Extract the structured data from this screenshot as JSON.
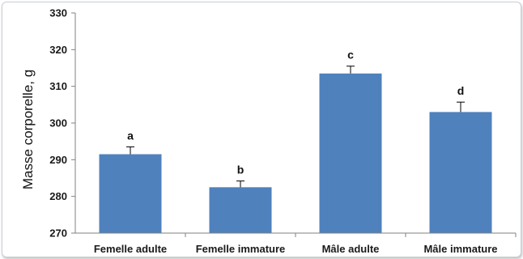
{
  "chart_data": {
    "type": "bar",
    "title": "",
    "xlabel": "",
    "ylabel": "Masse corporelle, g",
    "ylim": [
      270,
      330
    ],
    "yticks": [
      270,
      280,
      290,
      300,
      310,
      320,
      330
    ],
    "grid": false,
    "categories": [
      "Femelle adulte",
      "Femelle immature",
      "Mâle adulte",
      "Mâle immature"
    ],
    "values": [
      291.5,
      282.5,
      313.5,
      303
    ],
    "error_plus": [
      2,
      1.7,
      2,
      2.7
    ],
    "annotations": [
      "a",
      "b",
      "c",
      "d"
    ],
    "bar_color": "#4f81bd"
  }
}
